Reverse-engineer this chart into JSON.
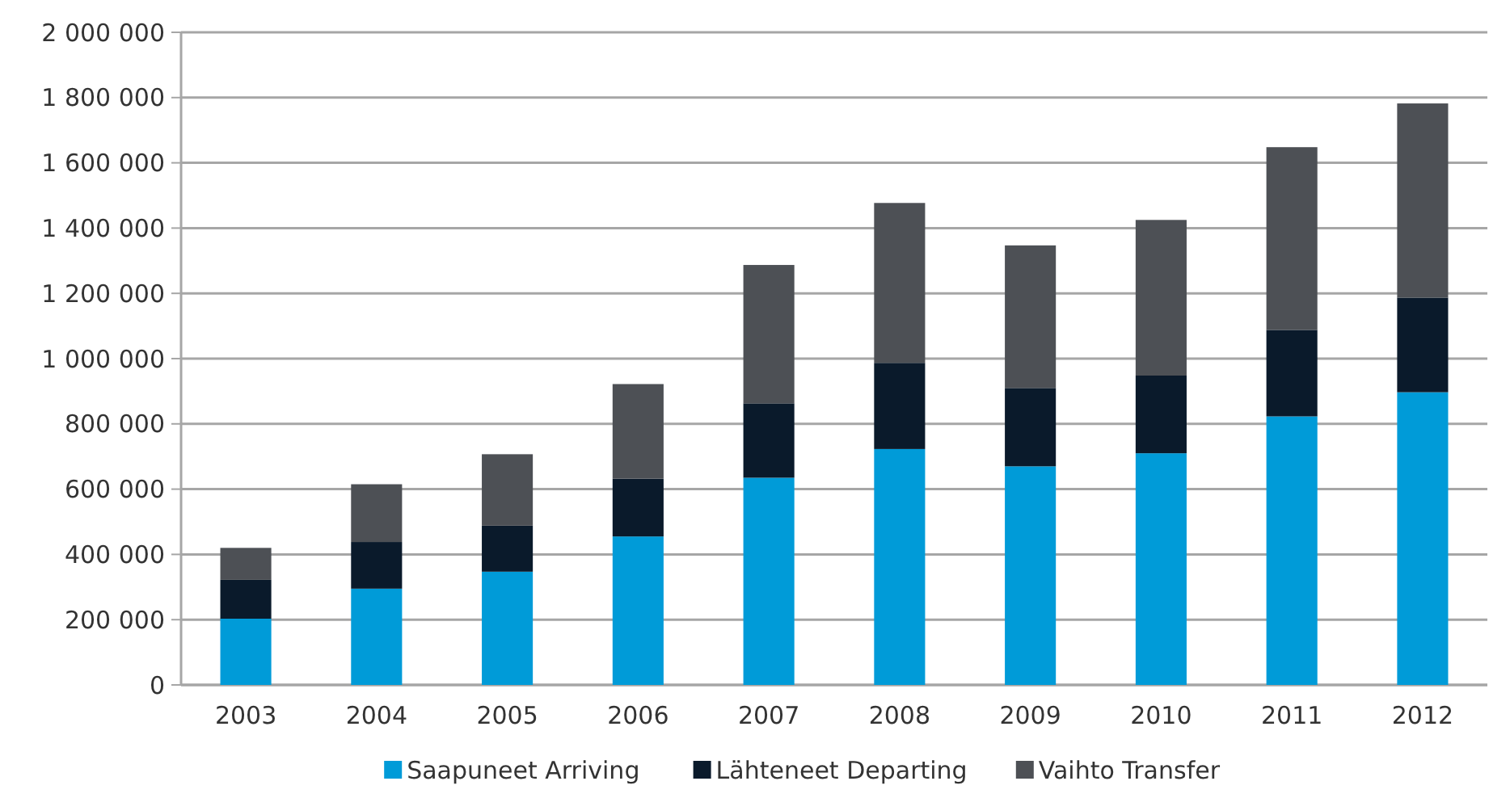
{
  "chart_data": {
    "type": "bar",
    "stacked": true,
    "categories": [
      "2003",
      "2004",
      "2005",
      "2006",
      "2007",
      "2008",
      "2009",
      "2010",
      "2011",
      "2012"
    ],
    "series": [
      {
        "name": "Saapuneet Arriving",
        "color": "#009bd8",
        "values": [
          203000,
          295000,
          347000,
          455000,
          635000,
          723000,
          670000,
          710000,
          823000,
          897000
        ]
      },
      {
        "name": "Lähteneet Departing",
        "color": "#0a1a2b",
        "values": [
          119000,
          143000,
          141000,
          177000,
          228000,
          264000,
          240000,
          238000,
          265000,
          290000
        ]
      },
      {
        "name": "Vaihto Transfer",
        "color": "#4d5055",
        "values": [
          98000,
          177000,
          219000,
          290000,
          424000,
          490000,
          437000,
          477000,
          560000,
          595000
        ]
      }
    ],
    "ylim": [
      0,
      2000000
    ],
    "yticks": [
      0,
      {
        "value": 200000,
        "label": "200 000"
      },
      {
        "value": 400000,
        "label": "400 000"
      },
      {
        "value": 600000,
        "label": "600 000"
      },
      {
        "value": 800000,
        "label": "800 000"
      },
      {
        "value": 1000000,
        "label": "1 000 000"
      },
      {
        "value": 1200000,
        "label": "1 200 000"
      },
      {
        "value": 1400000,
        "label": "1 400 000"
      },
      {
        "value": 1600000,
        "label": "1 600 000"
      },
      {
        "value": 1800000,
        "label": "1 800 000"
      },
      {
        "value": 2000000,
        "label": "2 000 000"
      }
    ],
    "grid": "y",
    "legend": "bottom"
  }
}
